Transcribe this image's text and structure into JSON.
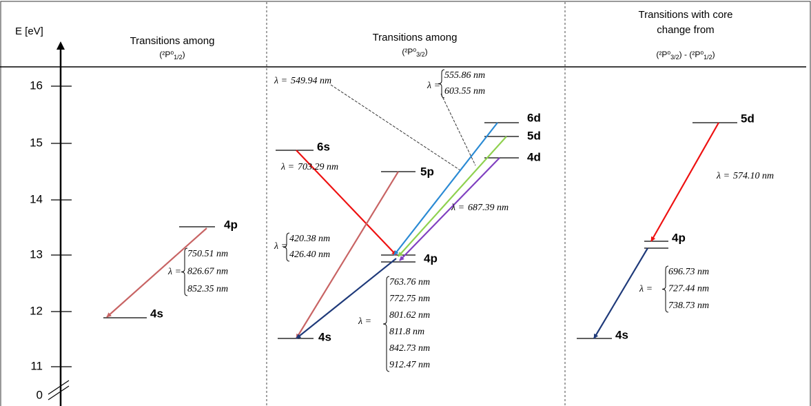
{
  "axis": {
    "label": "E [eV]",
    "ticks": [
      "16",
      "15",
      "14",
      "13",
      "12",
      "11",
      "0"
    ]
  },
  "columns": [
    {
      "title": [
        "Transitions among"
      ],
      "term": [
        "(²P⁰",
        "1/2",
        ")"
      ],
      "levels": [
        "4p",
        "4s"
      ],
      "wavelengths": [
        {
          "prefix": "λ =",
          "values": [
            "750.51 nm",
            "826.67 nm",
            "852.35 nm"
          ]
        }
      ]
    },
    {
      "title": [
        "Transitions among"
      ],
      "term": [
        "(²P⁰",
        "3/2",
        ")"
      ],
      "levels": [
        "6s",
        "5p",
        "6d",
        "5d",
        "4d",
        "4p",
        "4s"
      ],
      "wavelengths": [
        {
          "prefix": "λ =",
          "values": [
            "703.29 nm"
          ]
        },
        {
          "prefix": "λ =",
          "values": [
            "549.94 nm"
          ]
        },
        {
          "prefix": "λ =",
          "values": [
            "555.86 nm",
            "603.55 nm"
          ]
        },
        {
          "prefix": "λ =",
          "values": [
            "687.39 nm"
          ]
        },
        {
          "prefix": "λ =",
          "values": [
            "420.38 nm",
            "426.40 nm"
          ]
        },
        {
          "prefix": "λ =",
          "values": [
            "763.76 nm",
            "772.75 nm",
            "801.62 nm",
            "811.8 nm",
            "842.73 nm",
            "912.47 nm"
          ]
        }
      ]
    },
    {
      "title": [
        "Transitions with core",
        "change from"
      ],
      "term": [
        "(²P⁰",
        "3/2",
        ") - (²P⁰",
        "1/2",
        ")"
      ],
      "levels": [
        "5d",
        "4p",
        "4s"
      ],
      "wavelengths": [
        {
          "prefix": "λ =",
          "values": [
            "574.10 nm"
          ]
        },
        {
          "prefix": "λ =",
          "values": [
            "696.73 nm",
            "727.44 nm",
            "738.73 nm"
          ]
        }
      ]
    }
  ]
}
